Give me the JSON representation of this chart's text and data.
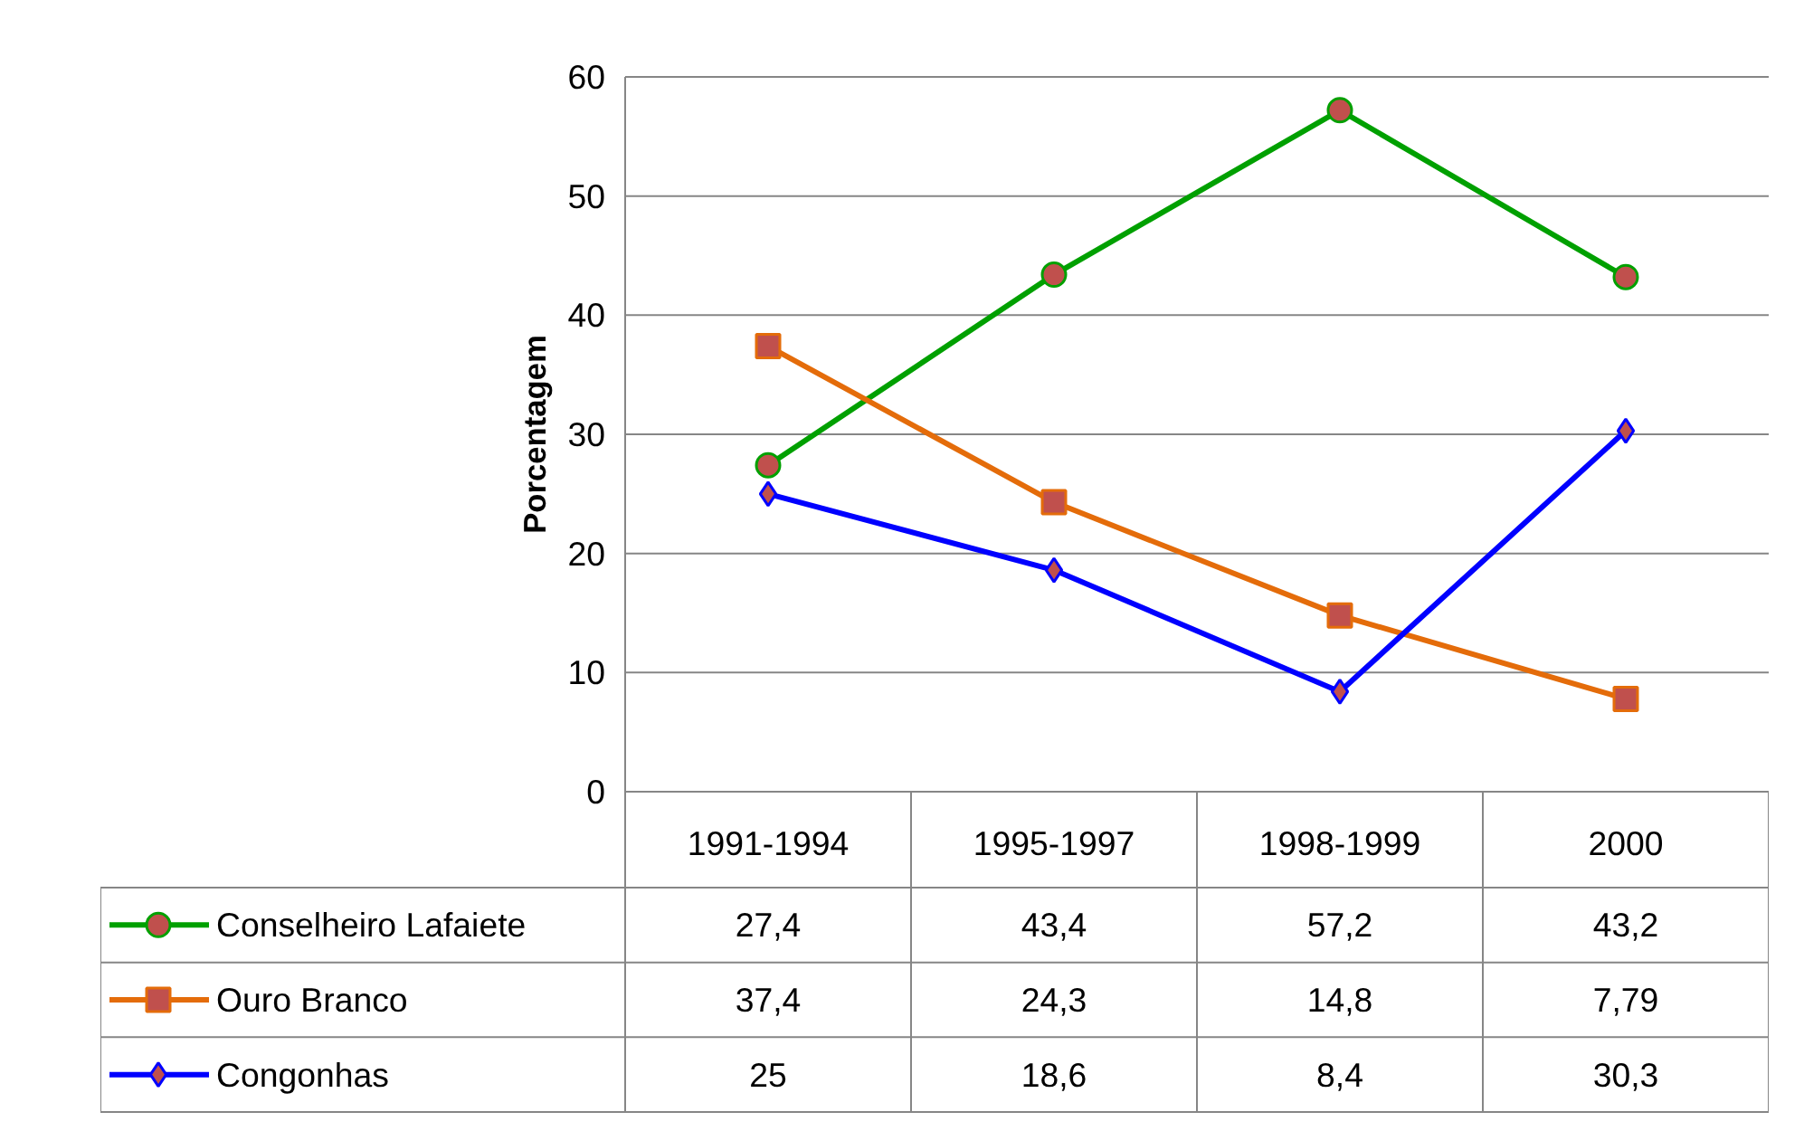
{
  "chart_data": {
    "type": "line",
    "ylabel": "Porcentagem",
    "categories": [
      "1991-1994",
      "1995-1997",
      "1998-1999",
      "2000"
    ],
    "ylim": [
      0,
      60
    ],
    "yticks": [
      0,
      10,
      20,
      30,
      40,
      50,
      60
    ],
    "grid": "y",
    "legend": "bottom left",
    "series": [
      {
        "name": "Conselheiro Lafaiete",
        "color": "#00a000",
        "marker": "circle",
        "values": [
          27.4,
          43.4,
          57.2,
          43.2
        ],
        "value_labels": [
          "27,4",
          "43,4",
          "57,2",
          "43,2"
        ]
      },
      {
        "name": "Ouro Branco",
        "color": "#e46c0a",
        "marker": "square",
        "values": [
          37.4,
          24.3,
          14.8,
          7.79
        ],
        "value_labels": [
          "37,4",
          "24,3",
          "14,8",
          "7,79"
        ]
      },
      {
        "name": "Congonhas",
        "color": "#0000ff",
        "marker": "diamond",
        "values": [
          25,
          18.6,
          8.4,
          30.3
        ],
        "value_labels": [
          "25",
          "18,6",
          "8,4",
          "30,3"
        ]
      }
    ]
  }
}
